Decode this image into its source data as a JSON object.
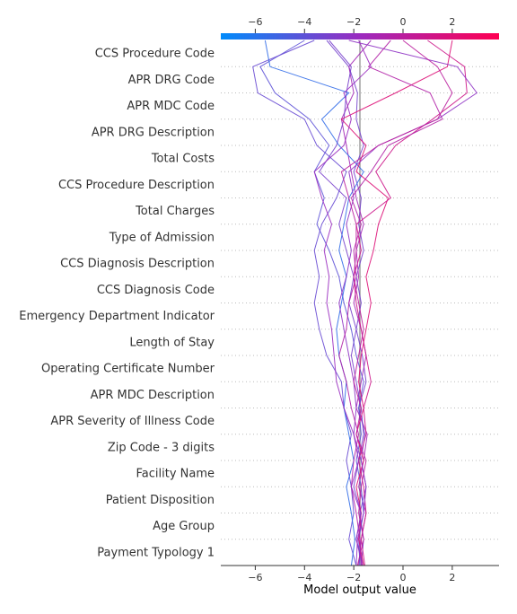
{
  "chart_data": {
    "type": "line",
    "title": "",
    "xlabel": "Model output value",
    "ylabel": "",
    "xlim": [
      -7.4,
      3.9
    ],
    "x_ticks": [
      -6,
      -4,
      -2,
      0,
      2
    ],
    "x_tick_labels": [
      "−6",
      "−4",
      "−2",
      "0",
      "2"
    ],
    "base_value": -1.75,
    "features": [
      "CCS Procedure Code",
      "APR DRG Code",
      "APR MDC Code",
      "APR DRG Description",
      "Total Costs",
      "CCS Procedure Description",
      "Total Charges",
      "Type of Admission",
      "CCS Diagnosis Description",
      "CCS Diagnosis Code",
      "Emergency Department Indicator",
      "Length of Stay",
      "Operating Certificate Number",
      "APR MDC Description",
      "APR Severity of Illness Code",
      "Zip Code - 3 digits",
      "Facility Name",
      "Patient Disposition",
      "Age Group",
      "Payment Typology 1"
    ],
    "colorscale": [
      "#008bfb",
      "#ff0052"
    ],
    "series": [
      {
        "values": [
          -1.7,
          -1.6,
          -1.75,
          -1.5,
          -1.7,
          -1.55,
          -1.8,
          -1.5,
          -1.65,
          -1.9,
          -1.7,
          -1.9,
          -1.6,
          -1.8,
          -1.7,
          -2.0,
          -1.6,
          -1.9,
          -1.85,
          -2.2,
          -3.1
        ]
      },
      {
        "values": [
          -1.8,
          -1.7,
          -1.5,
          -1.8,
          -1.6,
          -1.45,
          -1.9,
          -1.7,
          -1.5,
          -1.7,
          -2.0,
          -1.8,
          -1.9,
          -1.6,
          -1.9,
          -2.1,
          -2.3,
          -2.5,
          -2.0,
          -2.2,
          -1.3
        ]
      },
      {
        "values": [
          -1.6,
          -1.9,
          -1.7,
          -2.0,
          -1.8,
          -1.6,
          -1.7,
          -1.9,
          -2.1,
          -1.9,
          -2.2,
          -2.0,
          -2.3,
          -2.6,
          -2.3,
          -3.4,
          -2.7,
          -2.4,
          -2.3,
          -2.1,
          -3.0
        ]
      },
      {
        "values": [
          -1.75,
          -1.8,
          -1.6,
          -1.7,
          -1.9,
          -1.7,
          -1.8,
          -1.6,
          -1.9,
          -2.1,
          -2.4,
          -2.6,
          -3.0,
          -3.5,
          -3.2,
          -3.6,
          -3.0,
          -3.8,
          -5.2,
          -5.8,
          -4.0
        ]
      },
      {
        "values": [
          -1.9,
          -2.2,
          -2.0,
          -2.1,
          -2.3,
          -2.1,
          -2.4,
          -2.5,
          -3.1,
          -3.4,
          -3.6,
          -3.4,
          -3.6,
          -3.3,
          -2.7,
          -2.3,
          -3.5,
          -4.0,
          -5.9,
          -6.1,
          -3.6
        ]
      },
      {
        "values": [
          -2.1,
          -1.95,
          -2.1,
          -2.3,
          -2.0,
          -2.2,
          -2.4,
          -2.3,
          -2.6,
          -2.7,
          -2.5,
          -2.3,
          -2.6,
          -2.4,
          -2.2,
          -1.6,
          -2.6,
          -3.3,
          -2.2,
          -5.4,
          -5.6
        ]
      },
      {
        "values": [
          -1.6,
          -1.8,
          -1.7,
          -1.9,
          -1.6,
          -1.9,
          -1.6,
          -1.8,
          -1.7,
          -1.5,
          -1.3,
          -1.5,
          -1.2,
          -1.0,
          -0.6,
          -1.9,
          -1.5,
          -2.5,
          -0.3,
          1.8,
          2.0
        ]
      },
      {
        "values": [
          -1.55,
          -1.7,
          -1.5,
          -1.6,
          -1.8,
          -1.5,
          -1.6,
          -1.3,
          -1.5,
          -1.7,
          -1.9,
          -2.0,
          -1.7,
          -1.9,
          -0.5,
          -1.1,
          -0.3,
          1.2,
          2.6,
          2.5,
          1.0
        ]
      },
      {
        "values": [
          -1.9,
          -1.85,
          -1.6,
          -1.5,
          -1.7,
          -2.0,
          -1.9,
          -2.0,
          -2.2,
          -2.4,
          -2.6,
          -2.3,
          -2.1,
          -2.3,
          -2.0,
          -2.2,
          -1.0,
          1.4,
          3.0,
          2.2,
          -2.2
        ]
      },
      {
        "values": [
          -1.7,
          -1.75,
          -1.9,
          -2.1,
          -2.0,
          -1.8,
          -2.1,
          -2.3,
          -2.6,
          -2.3,
          -2.2,
          -1.9,
          -2.0,
          -1.7,
          -2.1,
          -1.3,
          -0.6,
          1.6,
          1.1,
          -1.4,
          -0.5
        ]
      },
      {
        "values": [
          -1.85,
          -1.6,
          -1.8,
          -1.7,
          -1.5,
          -1.9,
          -1.7,
          -2.0,
          -1.8,
          -1.6,
          -1.8,
          -2.0,
          -1.9,
          -1.9,
          -2.2,
          -2.5,
          -1.0,
          1.4,
          2.0,
          1.4,
          0.0
        ]
      },
      {
        "values": [
          -1.65,
          -1.9,
          -1.7,
          -2.1,
          -1.8,
          -2.0,
          -2.4,
          -2.7,
          -2.8,
          -2.9,
          -3.1,
          -3.0,
          -3.2,
          -2.9,
          -3.3,
          -3.6,
          -2.4,
          -2.1,
          -2.4,
          -1.3,
          -1.8
        ]
      }
    ]
  }
}
